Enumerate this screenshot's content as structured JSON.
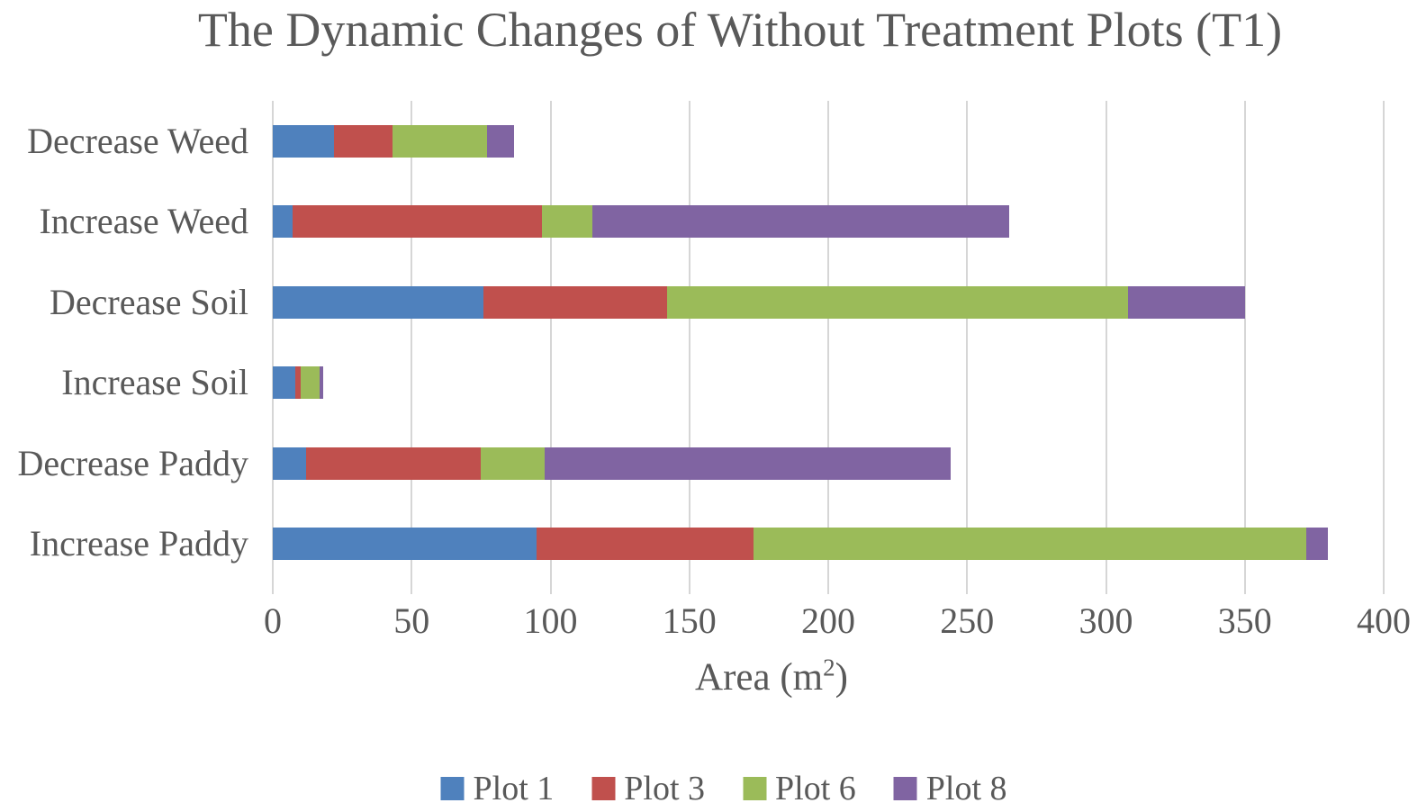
{
  "chart_data": {
    "type": "bar",
    "orientation": "horizontal",
    "stacked": true,
    "title": "The Dynamic Changes of Without Treatment Plots (T1)",
    "xlabel": "Area (m²)",
    "xlabel_parts": {
      "prefix": "Area (m",
      "sup": "2",
      "suffix": ")"
    },
    "categories": [
      "Decrease Weed",
      "Increase Weed",
      "Decrease Soil",
      "Increase Soil",
      "Decrease Paddy",
      "Increase Paddy"
    ],
    "series": [
      {
        "name": "Plot 1",
        "color": "#4F81BD",
        "values": [
          22,
          7,
          76,
          8,
          12,
          95
        ]
      },
      {
        "name": "Plot 3",
        "color": "#C0504D",
        "values": [
          21,
          90,
          66,
          2,
          63,
          78
        ]
      },
      {
        "name": "Plot 6",
        "color": "#9BBB59",
        "values": [
          34,
          18,
          166,
          7,
          23,
          199
        ]
      },
      {
        "name": "Plot 8",
        "color": "#8064A2",
        "values": [
          10,
          150,
          42,
          1,
          146,
          8
        ]
      }
    ],
    "xlim": [
      0,
      400
    ],
    "xticks": [
      0,
      50,
      100,
      150,
      200,
      250,
      300,
      350,
      400
    ],
    "grid": true,
    "legend_position": "bottom",
    "colors": {
      "grid": "#D6D6D6",
      "text": "#595959",
      "background": "#FFFFFF"
    }
  }
}
